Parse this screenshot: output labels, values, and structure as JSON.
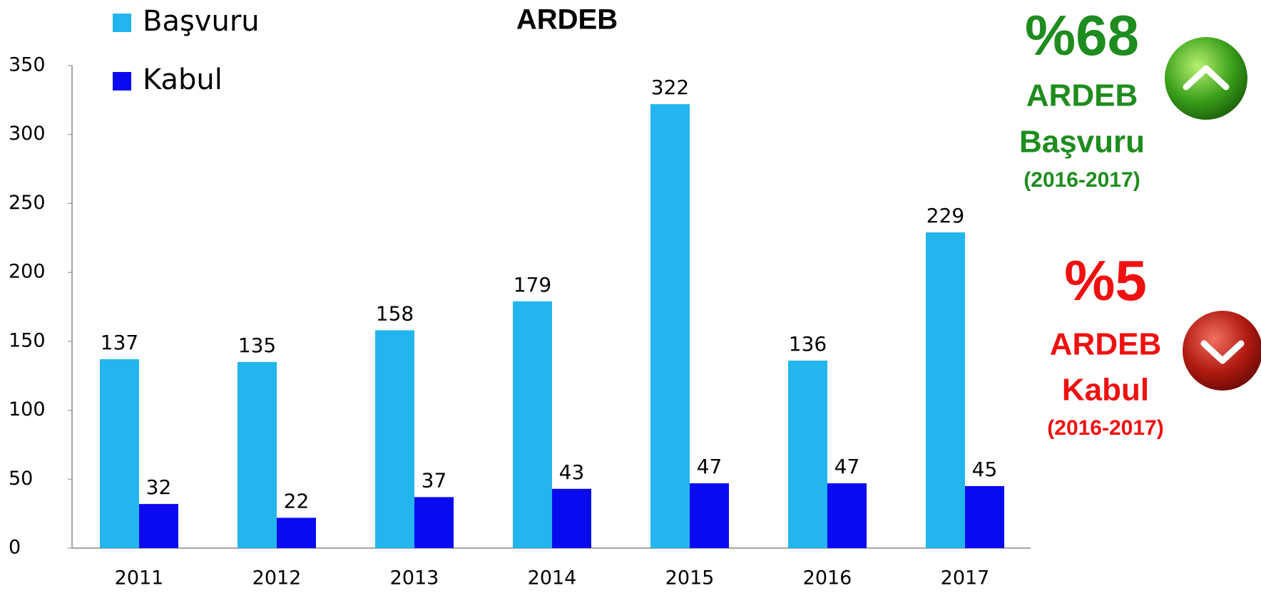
{
  "chart_data": {
    "type": "bar",
    "title": "ARDEB",
    "categories": [
      "2011",
      "2012",
      "2013",
      "2014",
      "2015",
      "2016",
      "2017"
    ],
    "series": [
      {
        "name": "Başvuru",
        "color": "#22b5ee",
        "values": [
          137,
          135,
          158,
          179,
          322,
          136,
          229
        ]
      },
      {
        "name": "Kabul",
        "color": "#0a0af0",
        "values": [
          32,
          22,
          37,
          43,
          47,
          47,
          45
        ]
      }
    ],
    "ylim": [
      0,
      350
    ],
    "yticks": [
      0,
      50,
      100,
      150,
      200,
      250,
      300,
      350
    ],
    "annotations": [
      {
        "texts": [
          "%68",
          "ARDEB",
          "Başvuru",
          "(2016-2017)"
        ],
        "color": "#1e8c1e"
      },
      {
        "texts": [
          "%5",
          "ARDEB",
          "Kabul",
          "(2016-2017)"
        ],
        "color": "#f01010"
      }
    ]
  }
}
